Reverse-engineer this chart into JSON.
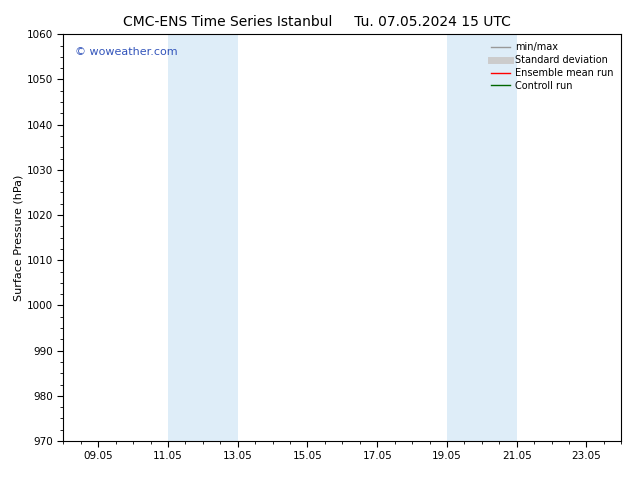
{
  "title_left": "CMC-ENS Time Series Istanbul",
  "title_right": "Tu. 07.05.2024 15 UTC",
  "ylabel": "Surface Pressure (hPa)",
  "ylim": [
    970,
    1060
  ],
  "yticks": [
    970,
    980,
    990,
    1000,
    1010,
    1020,
    1030,
    1040,
    1050,
    1060
  ],
  "xlim": [
    8.0,
    24.0
  ],
  "xtick_labels": [
    "09.05",
    "11.05",
    "13.05",
    "15.05",
    "17.05",
    "19.05",
    "21.05",
    "23.05"
  ],
  "xtick_positions": [
    9.0,
    11.0,
    13.0,
    15.0,
    17.0,
    19.0,
    21.0,
    23.0
  ],
  "shaded_bands": [
    {
      "x_start": 11.0,
      "x_end": 12.0
    },
    {
      "x_start": 12.0,
      "x_end": 13.0
    },
    {
      "x_start": 19.0,
      "x_end": 20.0
    },
    {
      "x_start": 20.0,
      "x_end": 21.0
    }
  ],
  "band_color": "#deedf8",
  "watermark": "© woweather.com",
  "watermark_color": "#3355bb",
  "background_color": "#ffffff",
  "grid_color": "#dddddd",
  "legend_entries": [
    {
      "label": "min/max",
      "color": "#999999",
      "linewidth": 1.0,
      "linestyle": "-"
    },
    {
      "label": "Standard deviation",
      "color": "#cccccc",
      "linewidth": 5,
      "linestyle": "-"
    },
    {
      "label": "Ensemble mean run",
      "color": "#ff0000",
      "linewidth": 1.0,
      "linestyle": "-"
    },
    {
      "label": "Controll run",
      "color": "#006600",
      "linewidth": 1.0,
      "linestyle": "-"
    }
  ],
  "title_fontsize": 10,
  "axis_fontsize": 8,
  "tick_fontsize": 7.5,
  "watermark_fontsize": 8,
  "legend_fontsize": 7
}
